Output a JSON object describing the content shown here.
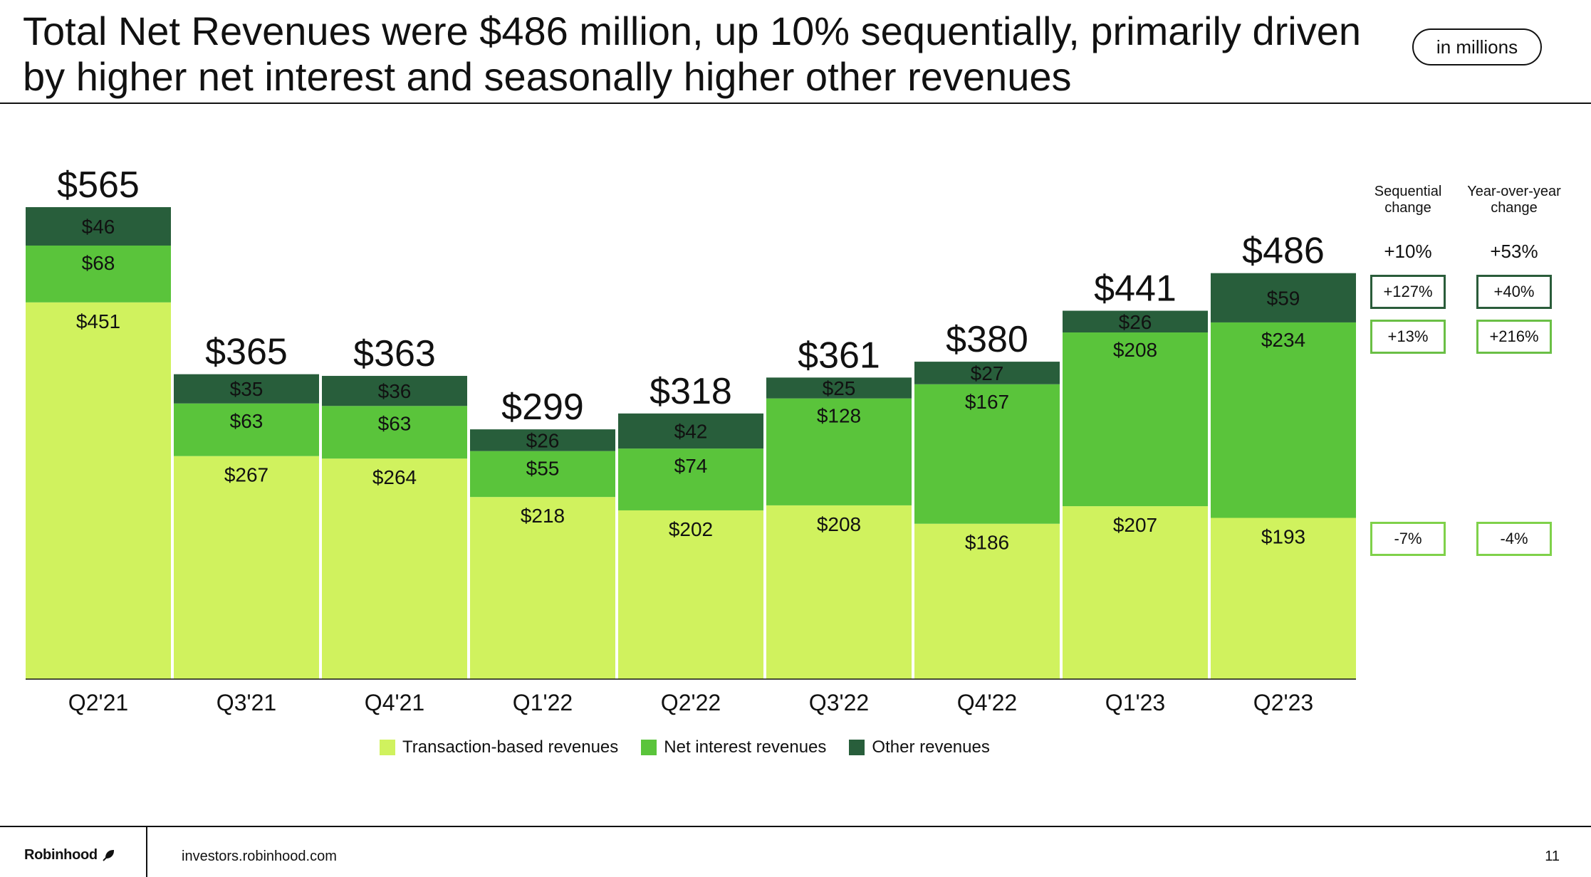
{
  "header": {
    "title": "Total Net Revenues were $486 million, up 10% sequentially, primarily driven by higher net interest and seasonally higher other revenues",
    "unit_label": "in millions"
  },
  "footer": {
    "brand": "Robinhood",
    "url": "investors.robinhood.com",
    "page_number": "11"
  },
  "change_table": {
    "sequential_header": "Sequential change",
    "yoy_header": "Year-over-year change",
    "total": {
      "sequential": "+10%",
      "yoy": "+53%"
    },
    "other": {
      "sequential": "+127%",
      "yoy": "+40%"
    },
    "net_interest": {
      "sequential": "+13%",
      "yoy": "+216%"
    },
    "transaction": {
      "sequential": "-7%",
      "yoy": "-4%"
    }
  },
  "colors": {
    "transaction": "#d0f25e",
    "net_interest": "#5ac43b",
    "other": "#285e3b"
  },
  "chart_data": {
    "type": "bar",
    "stacked": true,
    "categories": [
      "Q2'21",
      "Q3'21",
      "Q4'21",
      "Q1'22",
      "Q2'22",
      "Q3'22",
      "Q4'22",
      "Q1'23",
      "Q2'23"
    ],
    "series": [
      {
        "name": "Transaction-based revenues",
        "values": [
          451,
          267,
          264,
          218,
          202,
          208,
          186,
          207,
          193
        ]
      },
      {
        "name": "Net interest revenues",
        "values": [
          68,
          63,
          63,
          55,
          74,
          128,
          167,
          208,
          234
        ]
      },
      {
        "name": "Other revenues",
        "values": [
          46,
          35,
          36,
          26,
          42,
          25,
          27,
          26,
          59
        ]
      }
    ],
    "totals": [
      565,
      365,
      363,
      299,
      318,
      361,
      380,
      441,
      486
    ],
    "value_prefix": "$",
    "ylim": [
      0,
      565
    ],
    "legend_position": "bottom"
  }
}
